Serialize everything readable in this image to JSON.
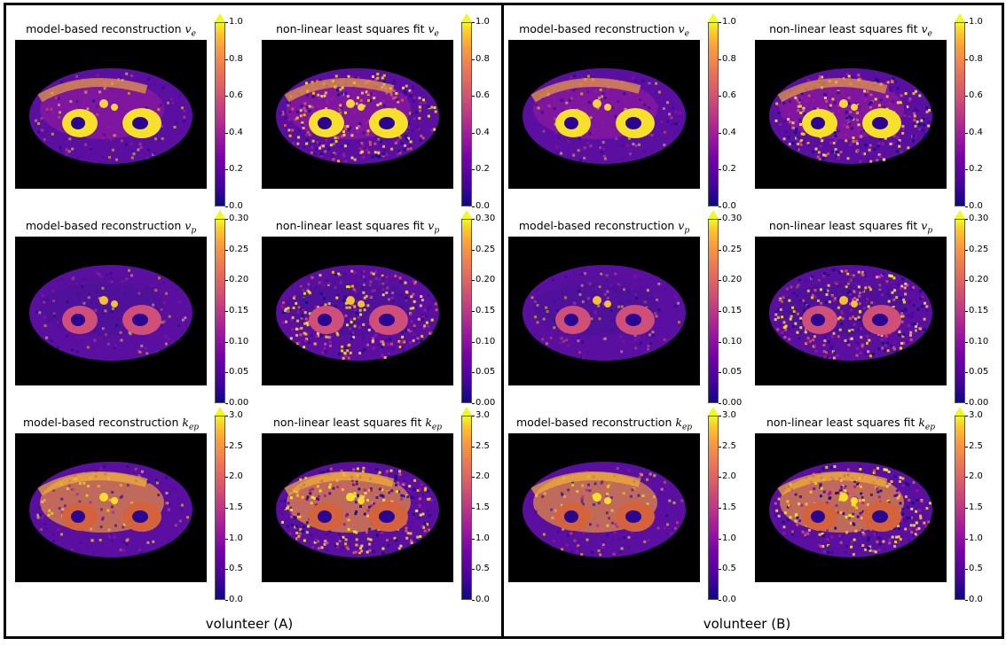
{
  "volunteers": [
    {
      "label": "volunteer (A)"
    },
    {
      "label": "volunteer (B)"
    }
  ],
  "rows": [
    {
      "param": "v",
      "sub": "e",
      "model_title": "model-based reconstruction",
      "nlls_title": "non-linear least squares fit",
      "ticks": [
        "1.0",
        "0.8",
        "0.6",
        "0.4",
        "0.2",
        "0.0"
      ]
    },
    {
      "param": "v",
      "sub": "p",
      "model_title": "model-based reconstruction",
      "nlls_title": "non-linear least squares fit",
      "ticks": [
        "0.30",
        "0.25",
        "0.20",
        "0.15",
        "0.10",
        "0.05",
        "0.00"
      ]
    },
    {
      "param": "k",
      "sub": "ep",
      "model_title": "model-based reconstruction",
      "nlls_title": "non-linear least squares fit",
      "ticks": [
        "3.0",
        "2.5",
        "2.0",
        "1.5",
        "1.0",
        "0.5",
        "0.0"
      ]
    }
  ],
  "colormap": {
    "low": "#0d0887",
    "mid": "#bd3786",
    "high": "#f0f921"
  }
}
